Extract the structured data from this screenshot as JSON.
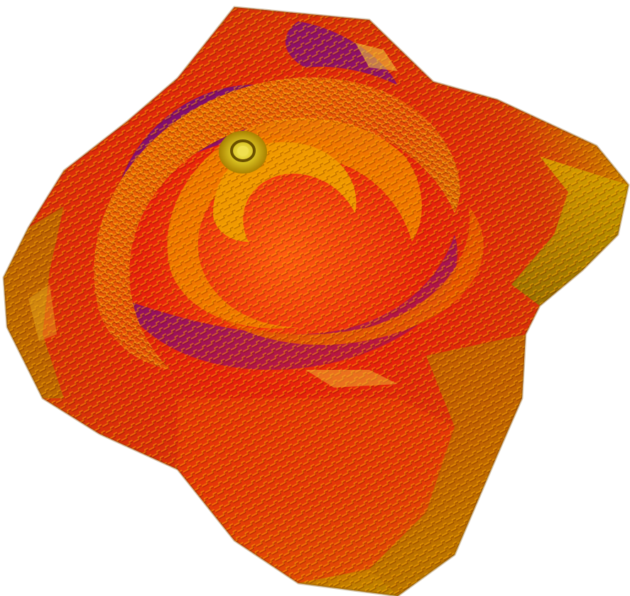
{
  "scene": {
    "subject": "voxel-spiral-surface",
    "background": "#ffffff",
    "palette": {
      "dark_purple": "#3a0a78",
      "magenta": "#a0105a",
      "red": "#e0180c",
      "orange": "#f06a00",
      "amber": "#e8a000",
      "olive_gold": "#b8a000",
      "bright_yellow": "#f0e030",
      "shadow_brown": "#6a2a00"
    }
  }
}
